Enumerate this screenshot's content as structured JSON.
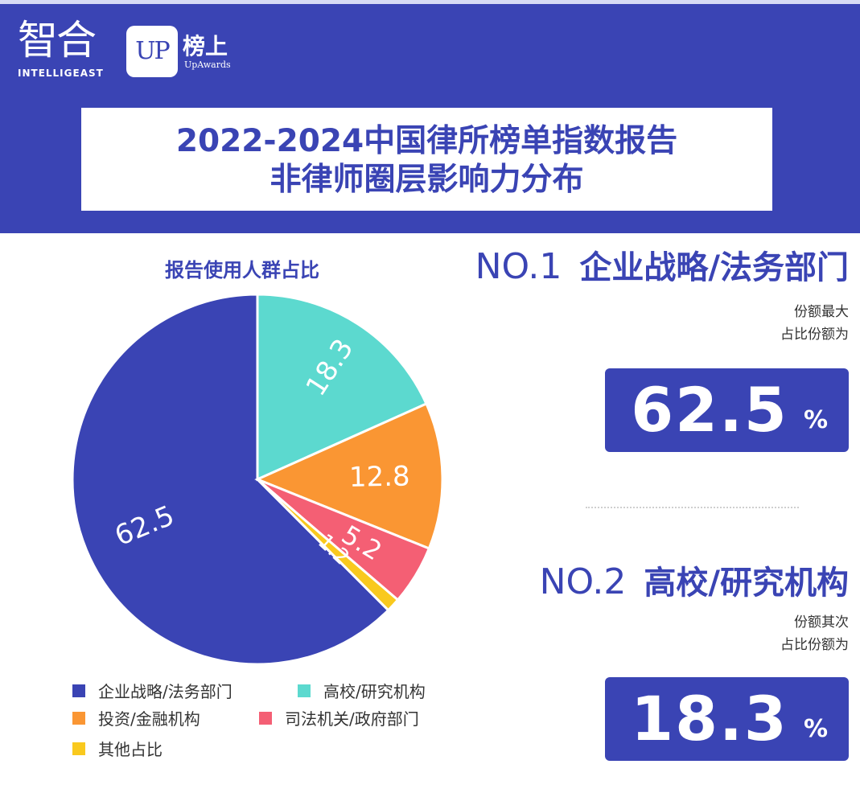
{
  "brand": {
    "zhihe_cn": "智合",
    "zhihe_en": "INTELLIGEAST",
    "up_mark": "UP",
    "up_cn": "榜上",
    "up_en": "UpAwards"
  },
  "title_lines": [
    "2022-2024中国律所榜单指数报告",
    "非律师圈层影响力分布"
  ],
  "chart_data": {
    "type": "pie",
    "title": "报告使用人群占比",
    "legend_position": "bottom",
    "slices": [
      {
        "name": "企业战略/法务部门",
        "value": 62.5,
        "label": "62.5",
        "color": "#3a44b4"
      },
      {
        "name": "高校/研究机构",
        "value": 18.3,
        "label": "18.3",
        "color": "#5cd9cf"
      },
      {
        "name": "投资/金融机构",
        "value": 12.8,
        "label": "12.8",
        "color": "#fa9633"
      },
      {
        "name": "司法机关/政府部门",
        "value": 5.2,
        "label": "5.2",
        "color": "#f45f74"
      },
      {
        "name": "其他占比",
        "value": 1.2,
        "label": "1.2",
        "color": "#f9c91e"
      }
    ]
  },
  "rankings": [
    {
      "no": "NO.1",
      "name": "企业战略/法务部门",
      "sub_lines": [
        "份额最大",
        "占比份额为"
      ],
      "value": "62.5",
      "unit": "%"
    },
    {
      "no": "NO.2",
      "name": "高校/研究机构",
      "sub_lines": [
        "份额其次",
        "占比份额为"
      ],
      "value": "18.3",
      "unit": "%"
    }
  ],
  "colors": {
    "accent": "#3a44b4",
    "teal": "#5cd9cf",
    "orange": "#fa9633",
    "pink": "#f45f74",
    "yellow": "#f9c91e"
  }
}
